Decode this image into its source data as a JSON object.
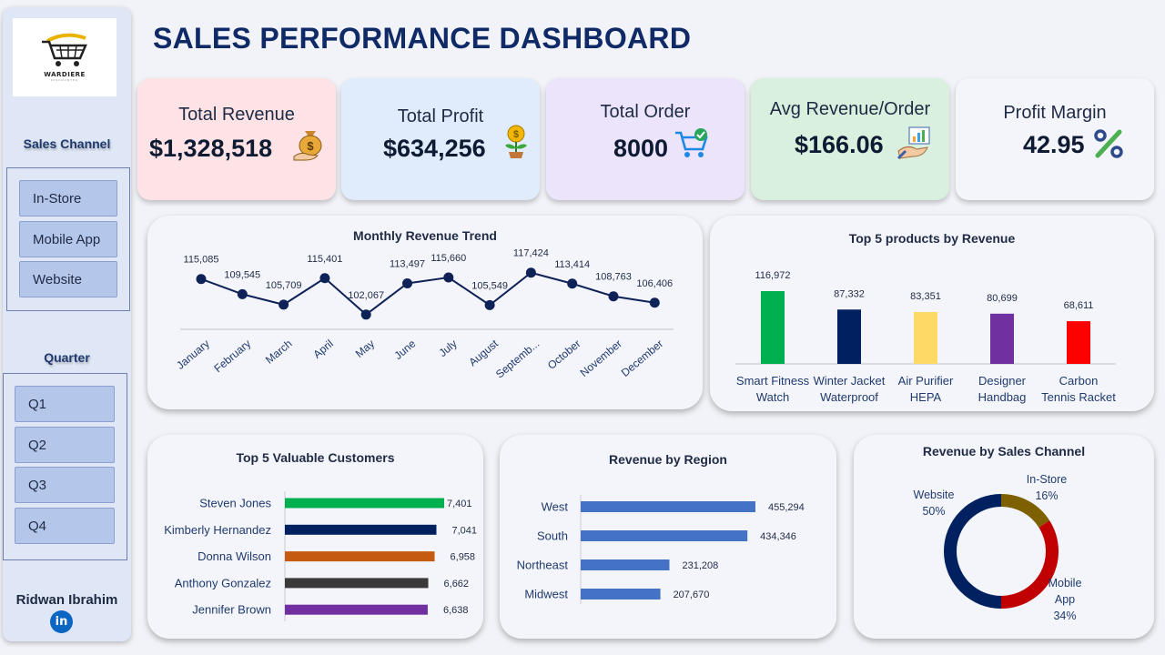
{
  "title": "SALES PERFORMANCE DASHBOARD",
  "logo": {
    "text": "WARDIERE",
    "sub": "DISCOUNTER"
  },
  "sidebar": {
    "channel_heading": "Sales Channel",
    "channels": [
      "In-Store",
      "Mobile App",
      "Website"
    ],
    "quarter_heading": "Quarter",
    "quarters": [
      "Q1",
      "Q2",
      "Q3",
      "Q4"
    ],
    "author": "Ridwan Ibrahim",
    "linkedin": "in"
  },
  "kpis": [
    {
      "label": "Total Revenue",
      "value": "$1,328,518",
      "icon": "money-bag-icon",
      "bg": "#fde3e6"
    },
    {
      "label": "Total Profit",
      "value": "$634,256",
      "icon": "money-plant-icon",
      "bg": "#e0ebfc"
    },
    {
      "label": "Total Order",
      "value": "8000",
      "icon": "shopping-cart-icon",
      "bg": "#ebe4fb"
    },
    {
      "label": "Avg Revenue/Order",
      "value": "$166.06",
      "icon": "analytics-hand-icon",
      "bg": "#d9f0df"
    },
    {
      "label": "Profit Margin",
      "value": "42.95",
      "icon": "percent-icon",
      "bg": "#f4f5fa"
    }
  ],
  "chart_data": [
    {
      "type": "line",
      "title": "Monthly Revenue Trend",
      "categories": [
        "January",
        "February",
        "March",
        "April",
        "May",
        "June",
        "July",
        "August",
        "Septemb...",
        "October",
        "November",
        "December"
      ],
      "values": [
        115085,
        109545,
        105709,
        115401,
        102067,
        113497,
        115660,
        105549,
        117424,
        113414,
        108763,
        106406
      ],
      "labels": [
        "115,085",
        "109,545",
        "105,709",
        "115,401",
        "102,067",
        "113,497",
        "115,660",
        "105,549",
        "117,424",
        "113,414",
        "108,763",
        "106,406"
      ],
      "color": "#0f2257"
    },
    {
      "type": "bar",
      "title": "Top 5 products by Revenue",
      "categories": [
        [
          "Smart Fitness",
          "Watch"
        ],
        [
          "Winter Jacket",
          "Waterproof"
        ],
        [
          "Air Purifier",
          "HEPA"
        ],
        [
          "Designer",
          "Handbag"
        ],
        [
          "Carbon",
          "Tennis Racket"
        ]
      ],
      "values": [
        116972,
        87332,
        83351,
        80699,
        68611
      ],
      "labels": [
        "116,972",
        "87,332",
        "83,351",
        "80,699",
        "68,611"
      ],
      "colors": [
        "#00b050",
        "#002060",
        "#ffd966",
        "#7030a0",
        "#ff0000"
      ]
    },
    {
      "type": "bar",
      "orientation": "horizontal",
      "title": "Top 5 Valuable Customers",
      "categories": [
        "Steven Jones",
        "Kimberly Hernandez",
        "Donna Wilson",
        "Anthony Gonzalez",
        "Jennifer Brown"
      ],
      "values": [
        7401,
        7041,
        6958,
        6662,
        6638
      ],
      "labels": [
        "7,401",
        "7,041",
        "6,958",
        "6,662",
        "6,638"
      ],
      "colors": [
        "#00b050",
        "#002060",
        "#c55a11",
        "#3a3a3a",
        "#7030a0"
      ]
    },
    {
      "type": "bar",
      "orientation": "horizontal",
      "title": "Revenue by Region",
      "categories": [
        "West",
        "South",
        "Northeast",
        "Midwest"
      ],
      "values": [
        455294,
        434346,
        231208,
        207670
      ],
      "labels": [
        "455,294",
        "434,346",
        "231,208",
        "207,670"
      ],
      "color": "#4472c4"
    },
    {
      "type": "pie",
      "title": "Revenue by Sales Channel",
      "slices": [
        {
          "name": "In-Store",
          "pct": "16%",
          "value": 16,
          "color": "#7f6000"
        },
        {
          "name": "Mobile App",
          "pct": "34%",
          "value": 34,
          "color": "#c00000"
        },
        {
          "name": "Website",
          "pct": "50%",
          "value": 50,
          "color": "#002060"
        }
      ]
    }
  ]
}
